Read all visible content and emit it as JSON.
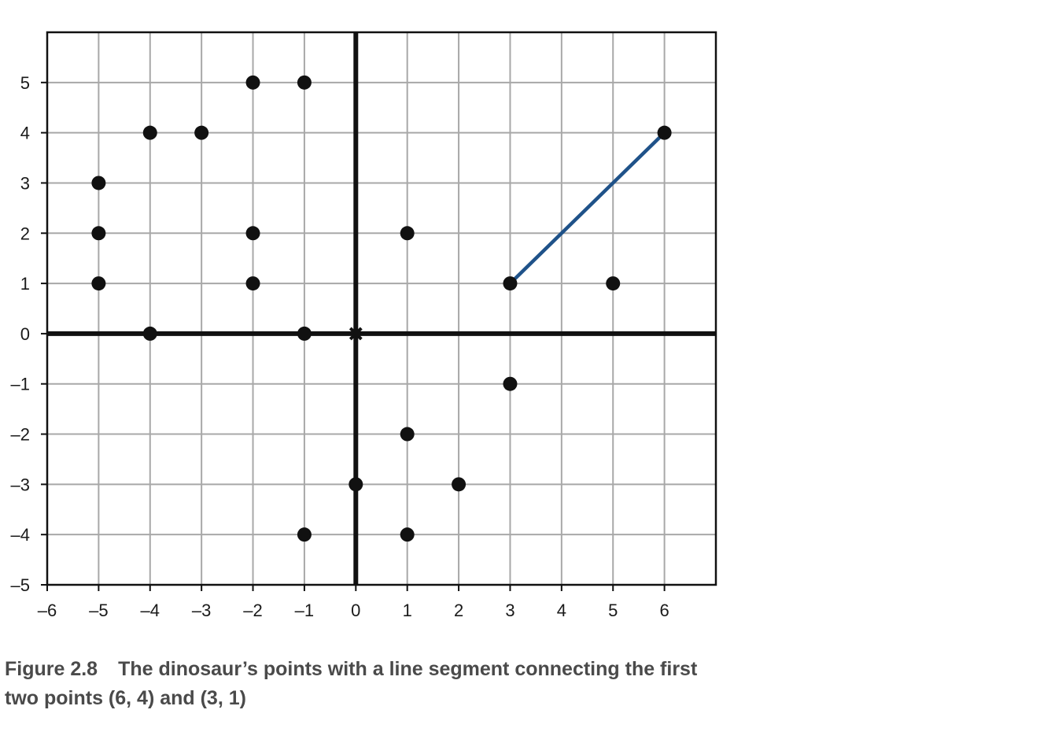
{
  "chart_data": {
    "type": "scatter",
    "title": "",
    "xlabel": "",
    "ylabel": "",
    "xlim": [
      -6,
      7
    ],
    "ylim": [
      -5,
      6
    ],
    "xticks": [
      "–6",
      "–5",
      "–4",
      "–3",
      "–2",
      "–1",
      "0",
      "1",
      "2",
      "3",
      "4",
      "5",
      "6"
    ],
    "yticks": [
      "–5",
      "–4",
      "–3",
      "–2",
      "–1",
      "0",
      "1",
      "2",
      "3",
      "4",
      "5"
    ],
    "grid": true,
    "origin_marker": "x",
    "points": [
      [
        6,
        4
      ],
      [
        3,
        1
      ],
      [
        1,
        2
      ],
      [
        -1,
        5
      ],
      [
        -2,
        5
      ],
      [
        -3,
        4
      ],
      [
        -4,
        4
      ],
      [
        -5,
        3
      ],
      [
        -5,
        2
      ],
      [
        -5,
        1
      ],
      [
        -4,
        0
      ],
      [
        -2,
        1
      ],
      [
        -2,
        2
      ],
      [
        -1,
        0
      ],
      [
        -1,
        -4
      ],
      [
        0,
        -3
      ],
      [
        1,
        -4
      ],
      [
        2,
        -3
      ],
      [
        1,
        -2
      ],
      [
        3,
        -1
      ],
      [
        5,
        1
      ]
    ],
    "segments": [
      {
        "from": [
          6,
          4
        ],
        "to": [
          3,
          1
        ]
      }
    ],
    "colors": {
      "points": "#111111",
      "segment": "#1f5289",
      "grid": "#a8a8a8",
      "axes": "#111111"
    }
  },
  "caption": {
    "figure_number": "Figure 2.8",
    "text": "The dinosaur’s points with a line segment connecting the first two points (6, 4) and (3, 1)"
  }
}
